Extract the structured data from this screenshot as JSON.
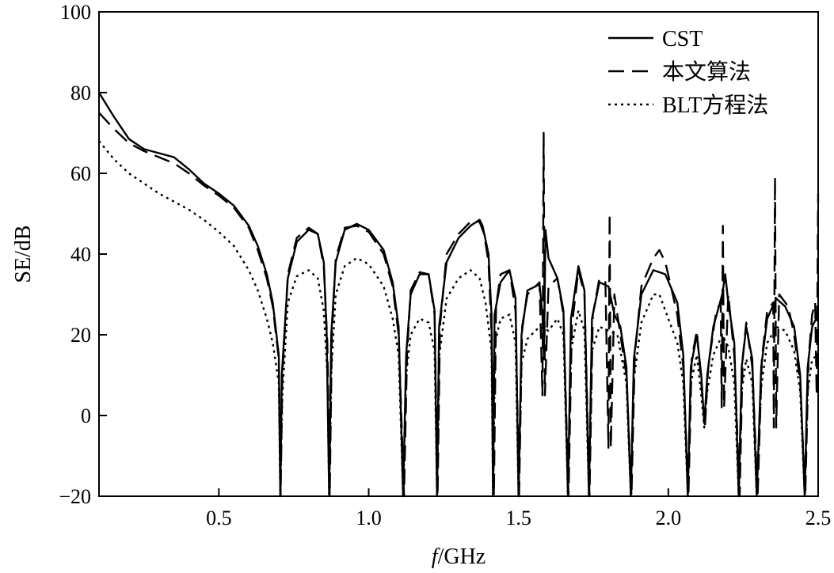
{
  "chart_data": {
    "type": "line",
    "title": "",
    "xlabel_italic": "f",
    "xlabel_rest": "/GHz",
    "ylabel": "SE/dB",
    "xlim": [
      0.1,
      2.5
    ],
    "ylim": [
      -20,
      100
    ],
    "x_ticks": [
      0.5,
      1.0,
      1.5,
      2.0,
      2.5
    ],
    "x_tick_labels": [
      "0.5",
      "1.0",
      "1.5",
      "2.0",
      "2.5"
    ],
    "y_ticks": [
      -20,
      0,
      20,
      40,
      60,
      80,
      100
    ],
    "y_tick_labels": [
      "−20",
      "0",
      "20",
      "40",
      "60",
      "80",
      "100"
    ],
    "grid": false,
    "legend_position": "top-right",
    "series": [
      {
        "name": "CST",
        "style": "solid",
        "points": [
          [
            0.1,
            80
          ],
          [
            0.15,
            74
          ],
          [
            0.2,
            68.5
          ],
          [
            0.25,
            66
          ],
          [
            0.3,
            65
          ],
          [
            0.35,
            64
          ],
          [
            0.4,
            61
          ],
          [
            0.45,
            57.5
          ],
          [
            0.5,
            55
          ],
          [
            0.55,
            52
          ],
          [
            0.6,
            47
          ],
          [
            0.63,
            42
          ],
          [
            0.66,
            35
          ],
          [
            0.68,
            28
          ],
          [
            0.7,
            15
          ],
          [
            0.705,
            -20
          ],
          [
            0.71,
            10
          ],
          [
            0.73,
            34
          ],
          [
            0.76,
            43
          ],
          [
            0.8,
            46
          ],
          [
            0.83,
            45
          ],
          [
            0.85,
            38
          ],
          [
            0.86,
            20
          ],
          [
            0.868,
            -20
          ],
          [
            0.875,
            20
          ],
          [
            0.89,
            38
          ],
          [
            0.92,
            46
          ],
          [
            0.96,
            47.5
          ],
          [
            1.0,
            46
          ],
          [
            1.05,
            41
          ],
          [
            1.08,
            33
          ],
          [
            1.1,
            22
          ],
          [
            1.115,
            -20
          ],
          [
            1.125,
            15
          ],
          [
            1.14,
            30
          ],
          [
            1.17,
            35
          ],
          [
            1.2,
            35
          ],
          [
            1.22,
            26
          ],
          [
            1.228,
            -20
          ],
          [
            1.235,
            22
          ],
          [
            1.26,
            38
          ],
          [
            1.3,
            44
          ],
          [
            1.34,
            47
          ],
          [
            1.37,
            48.5
          ],
          [
            1.38,
            47
          ],
          [
            1.4,
            40
          ],
          [
            1.41,
            25
          ],
          [
            1.415,
            -20
          ],
          [
            1.42,
            25
          ],
          [
            1.44,
            33
          ],
          [
            1.47,
            36
          ],
          [
            1.49,
            29
          ],
          [
            1.5,
            -20
          ],
          [
            1.51,
            20
          ],
          [
            1.53,
            31
          ],
          [
            1.57,
            32.5
          ],
          [
            1.58,
            25
          ],
          [
            1.585,
            14
          ],
          [
            1.59,
            46
          ],
          [
            1.6,
            39
          ],
          [
            1.63,
            34
          ],
          [
            1.65,
            26
          ],
          [
            1.665,
            -20
          ],
          [
            1.675,
            24
          ],
          [
            1.7,
            37
          ],
          [
            1.72,
            31
          ],
          [
            1.735,
            -20
          ],
          [
            1.745,
            24
          ],
          [
            1.77,
            33
          ],
          [
            1.8,
            32
          ],
          [
            1.82,
            25
          ],
          [
            1.84,
            22
          ],
          [
            1.86,
            12
          ],
          [
            1.875,
            -20
          ],
          [
            1.885,
            14
          ],
          [
            1.91,
            30
          ],
          [
            1.95,
            36
          ],
          [
            1.99,
            35
          ],
          [
            2.03,
            28
          ],
          [
            2.05,
            15
          ],
          [
            2.065,
            -20
          ],
          [
            2.075,
            12
          ],
          [
            2.095,
            20
          ],
          [
            2.11,
            10
          ],
          [
            2.12,
            -2
          ],
          [
            2.13,
            10
          ],
          [
            2.15,
            22
          ],
          [
            2.18,
            30
          ],
          [
            2.19,
            35
          ],
          [
            2.2,
            28
          ],
          [
            2.22,
            18
          ],
          [
            2.235,
            -20
          ],
          [
            2.245,
            12
          ],
          [
            2.26,
            22
          ],
          [
            2.28,
            14
          ],
          [
            2.295,
            -20
          ],
          [
            2.31,
            12
          ],
          [
            2.33,
            24
          ],
          [
            2.36,
            29
          ],
          [
            2.39,
            27
          ],
          [
            2.42,
            22
          ],
          [
            2.44,
            10
          ],
          [
            2.455,
            -20
          ],
          [
            2.465,
            12
          ],
          [
            2.48,
            22
          ],
          [
            2.5,
            25
          ]
        ]
      },
      {
        "name": "本文算法",
        "style": "dashed",
        "points": [
          [
            0.1,
            75
          ],
          [
            0.15,
            71
          ],
          [
            0.2,
            67.5
          ],
          [
            0.25,
            65.5
          ],
          [
            0.3,
            64
          ],
          [
            0.35,
            62.5
          ],
          [
            0.4,
            60
          ],
          [
            0.45,
            57
          ],
          [
            0.5,
            54.5
          ],
          [
            0.55,
            51.5
          ],
          [
            0.6,
            46.5
          ],
          [
            0.63,
            41
          ],
          [
            0.66,
            34
          ],
          [
            0.68,
            27
          ],
          [
            0.7,
            14
          ],
          [
            0.706,
            -20
          ],
          [
            0.712,
            10
          ],
          [
            0.73,
            35
          ],
          [
            0.76,
            44
          ],
          [
            0.8,
            46.5
          ],
          [
            0.83,
            45
          ],
          [
            0.85,
            37
          ],
          [
            0.862,
            18
          ],
          [
            0.87,
            -20
          ],
          [
            0.877,
            20
          ],
          [
            0.89,
            39
          ],
          [
            0.92,
            46.5
          ],
          [
            0.96,
            47
          ],
          [
            1.0,
            45.5
          ],
          [
            1.05,
            40
          ],
          [
            1.08,
            32
          ],
          [
            1.1,
            20
          ],
          [
            1.118,
            -20
          ],
          [
            1.128,
            15
          ],
          [
            1.14,
            31
          ],
          [
            1.17,
            35.5
          ],
          [
            1.2,
            35
          ],
          [
            1.22,
            25
          ],
          [
            1.23,
            -20
          ],
          [
            1.238,
            22
          ],
          [
            1.26,
            40
          ],
          [
            1.3,
            45
          ],
          [
            1.34,
            48
          ],
          [
            1.37,
            48
          ],
          [
            1.385,
            45
          ],
          [
            1.4,
            38
          ],
          [
            1.41,
            20
          ],
          [
            1.418,
            -20
          ],
          [
            1.425,
            27
          ],
          [
            1.44,
            35
          ],
          [
            1.47,
            36
          ],
          [
            1.49,
            26
          ],
          [
            1.502,
            -20
          ],
          [
            1.512,
            22
          ],
          [
            1.53,
            30
          ],
          [
            1.57,
            33
          ],
          [
            1.58,
            5
          ],
          [
            1.584,
            70
          ],
          [
            1.588,
            5
          ],
          [
            1.6,
            32
          ],
          [
            1.63,
            34
          ],
          [
            1.65,
            25
          ],
          [
            1.667,
            -20
          ],
          [
            1.678,
            22
          ],
          [
            1.7,
            36
          ],
          [
            1.72,
            30
          ],
          [
            1.737,
            -20
          ],
          [
            1.748,
            25
          ],
          [
            1.77,
            34
          ],
          [
            1.79,
            33
          ],
          [
            1.8,
            -8
          ],
          [
            1.804,
            50
          ],
          [
            1.808,
            -8
          ],
          [
            1.82,
            30
          ],
          [
            1.84,
            20
          ],
          [
            1.86,
            10
          ],
          [
            1.877,
            -20
          ],
          [
            1.888,
            15
          ],
          [
            1.91,
            32
          ],
          [
            1.95,
            39
          ],
          [
            1.97,
            41
          ],
          [
            1.99,
            38
          ],
          [
            2.03,
            25
          ],
          [
            2.05,
            12
          ],
          [
            2.067,
            -20
          ],
          [
            2.078,
            14
          ],
          [
            2.095,
            21
          ],
          [
            2.11,
            8
          ],
          [
            2.122,
            -3
          ],
          [
            2.133,
            12
          ],
          [
            2.16,
            26
          ],
          [
            2.175,
            28
          ],
          [
            2.178,
            2
          ],
          [
            2.182,
            47
          ],
          [
            2.186,
            2
          ],
          [
            2.2,
            30
          ],
          [
            2.22,
            15
          ],
          [
            2.238,
            -20
          ],
          [
            2.248,
            14
          ],
          [
            2.26,
            23
          ],
          [
            2.28,
            12
          ],
          [
            2.298,
            -20
          ],
          [
            2.312,
            14
          ],
          [
            2.33,
            26
          ],
          [
            2.35,
            28
          ],
          [
            2.352,
            -3
          ],
          [
            2.356,
            59
          ],
          [
            2.36,
            -3
          ],
          [
            2.37,
            30
          ],
          [
            2.4,
            27
          ],
          [
            2.42,
            20
          ],
          [
            2.44,
            8
          ],
          [
            2.457,
            -20
          ],
          [
            2.468,
            14
          ],
          [
            2.48,
            25
          ],
          [
            2.49,
            28
          ],
          [
            2.495,
            5
          ],
          [
            2.5,
            55
          ]
        ]
      },
      {
        "name": "BLT方程法",
        "style": "dotted",
        "points": [
          [
            0.1,
            68
          ],
          [
            0.15,
            63.5
          ],
          [
            0.2,
            60
          ],
          [
            0.25,
            57.5
          ],
          [
            0.3,
            55
          ],
          [
            0.35,
            53
          ],
          [
            0.4,
            51
          ],
          [
            0.45,
            48.5
          ],
          [
            0.5,
            45.5
          ],
          [
            0.55,
            42
          ],
          [
            0.6,
            36
          ],
          [
            0.63,
            31
          ],
          [
            0.66,
            24
          ],
          [
            0.68,
            18
          ],
          [
            0.7,
            8
          ],
          [
            0.705,
            -20
          ],
          [
            0.712,
            5
          ],
          [
            0.73,
            28
          ],
          [
            0.76,
            34.5
          ],
          [
            0.8,
            36
          ],
          [
            0.83,
            34
          ],
          [
            0.85,
            26
          ],
          [
            0.862,
            10
          ],
          [
            0.868,
            -20
          ],
          [
            0.876,
            12
          ],
          [
            0.89,
            30
          ],
          [
            0.92,
            37
          ],
          [
            0.96,
            39
          ],
          [
            1.0,
            37.5
          ],
          [
            1.05,
            32
          ],
          [
            1.08,
            24
          ],
          [
            1.1,
            15
          ],
          [
            1.115,
            -20
          ],
          [
            1.125,
            10
          ],
          [
            1.14,
            20
          ],
          [
            1.17,
            24
          ],
          [
            1.2,
            23
          ],
          [
            1.22,
            16
          ],
          [
            1.228,
            -20
          ],
          [
            1.236,
            15
          ],
          [
            1.26,
            29
          ],
          [
            1.3,
            34
          ],
          [
            1.34,
            36
          ],
          [
            1.37,
            34
          ],
          [
            1.39,
            28
          ],
          [
            1.41,
            16
          ],
          [
            1.415,
            -20
          ],
          [
            1.422,
            18
          ],
          [
            1.44,
            24
          ],
          [
            1.47,
            25
          ],
          [
            1.49,
            18
          ],
          [
            1.5,
            -20
          ],
          [
            1.51,
            13
          ],
          [
            1.53,
            19
          ],
          [
            1.57,
            22
          ],
          [
            1.6,
            21
          ],
          [
            1.63,
            24
          ],
          [
            1.65,
            20
          ],
          [
            1.665,
            -20
          ],
          [
            1.675,
            16
          ],
          [
            1.7,
            26
          ],
          [
            1.72,
            21
          ],
          [
            1.735,
            -20
          ],
          [
            1.745,
            16
          ],
          [
            1.77,
            22
          ],
          [
            1.8,
            21
          ],
          [
            1.83,
            20
          ],
          [
            1.86,
            8
          ],
          [
            1.875,
            -20
          ],
          [
            1.885,
            9
          ],
          [
            1.91,
            23
          ],
          [
            1.95,
            30
          ],
          [
            1.97,
            30
          ],
          [
            1.99,
            26
          ],
          [
            2.03,
            18
          ],
          [
            2.05,
            8
          ],
          [
            2.065,
            -20
          ],
          [
            2.075,
            8
          ],
          [
            2.095,
            15
          ],
          [
            2.11,
            5
          ],
          [
            2.12,
            -3
          ],
          [
            2.13,
            6
          ],
          [
            2.15,
            15
          ],
          [
            2.18,
            20
          ],
          [
            2.2,
            17
          ],
          [
            2.22,
            8
          ],
          [
            2.235,
            -20
          ],
          [
            2.245,
            6
          ],
          [
            2.26,
            14
          ],
          [
            2.28,
            8
          ],
          [
            2.295,
            -20
          ],
          [
            2.31,
            7
          ],
          [
            2.33,
            18
          ],
          [
            2.36,
            22
          ],
          [
            2.39,
            21
          ],
          [
            2.42,
            16
          ],
          [
            2.44,
            6
          ],
          [
            2.455,
            -20
          ],
          [
            2.465,
            6
          ],
          [
            2.48,
            14
          ],
          [
            2.5,
            15
          ]
        ]
      }
    ]
  }
}
